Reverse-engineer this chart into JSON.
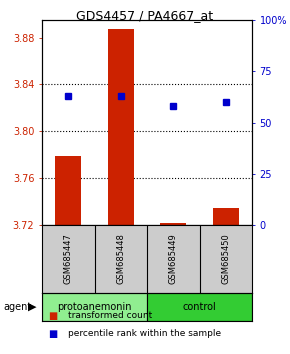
{
  "title": "GDS4457 / PA4667_at",
  "samples": [
    "GSM685447",
    "GSM685448",
    "GSM685449",
    "GSM685450"
  ],
  "bar_values": [
    3.7785,
    3.8875,
    3.7215,
    3.7345
  ],
  "bar_base": 3.72,
  "percentile_values": [
    63,
    63,
    58,
    60
  ],
  "ylim": [
    3.72,
    3.895
  ],
  "y2lim": [
    0,
    100
  ],
  "yticks": [
    3.72,
    3.76,
    3.8,
    3.84,
    3.88
  ],
  "y2ticks": [
    0,
    25,
    50,
    75,
    100
  ],
  "bar_color": "#CC2200",
  "dot_color": "#0000CC",
  "left_label_color": "#CC2200",
  "right_label_color": "#0000CC",
  "group_info": [
    {
      "label": "protoanemonin",
      "start": 0,
      "end": 2,
      "color": "#90EE90"
    },
    {
      "label": "control",
      "start": 2,
      "end": 4,
      "color": "#33CC33"
    }
  ]
}
